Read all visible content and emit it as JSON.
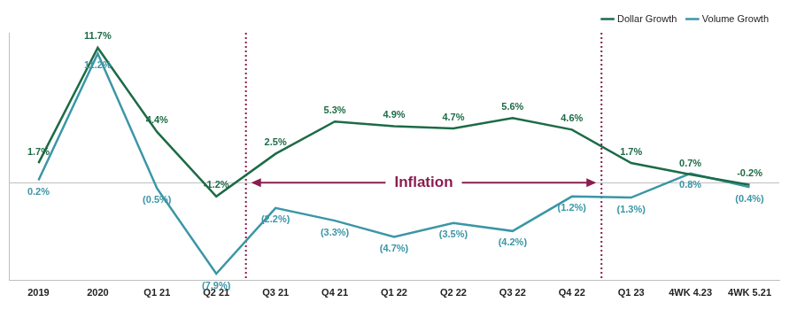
{
  "chart_data": {
    "type": "line",
    "categories": [
      "2019",
      "2020",
      "Q1 21",
      "Q2 21",
      "Q3 21",
      "Q4 21",
      "Q1 22",
      "Q2 22",
      "Q3 22",
      "Q4 22",
      "Q1 23",
      "4WK 4.23",
      "4WK 5.21"
    ],
    "series": [
      {
        "name": "Dollar Growth",
        "color": "#1d6b47",
        "values": [
          1.7,
          11.7,
          4.4,
          -1.2,
          2.5,
          5.3,
          4.9,
          4.7,
          5.6,
          4.6,
          1.7,
          0.7,
          -0.2
        ],
        "value_labels": [
          "1.7%",
          "11.7%",
          "4.4%",
          "-1.2%",
          "2.5%",
          "5.3%",
          "4.9%",
          "4.7%",
          "5.6%",
          "4.6%",
          "1.7%",
          "0.7%",
          "-0.2%"
        ]
      },
      {
        "name": "Volume Growth",
        "color": "#3b96a6",
        "values": [
          0.2,
          11.2,
          -0.5,
          -7.9,
          -2.2,
          -3.3,
          -4.7,
          -3.5,
          -4.2,
          -1.2,
          -1.3,
          0.8,
          -0.4
        ],
        "value_labels": [
          "0.2%",
          "11.2%",
          "(0.5%)",
          "(7.9%)",
          "(2.2%)",
          "(3.3%)",
          "(4.7%)",
          "(3.5%)",
          "(4.2%)",
          "(1.2%)",
          "(1.3%)",
          "0.8%",
          "(0.4%)"
        ]
      }
    ],
    "ylim": [
      -8.5,
      13
    ],
    "yticks": [
      0
    ],
    "grid": true,
    "tick_labels": "x",
    "legend": "top-right",
    "data_labels": true,
    "marker": "none",
    "annotations": [
      {
        "text": "Inflation",
        "start": "Q3 21",
        "end": "Q4 22",
        "color": "#8b1c4f"
      }
    ]
  }
}
